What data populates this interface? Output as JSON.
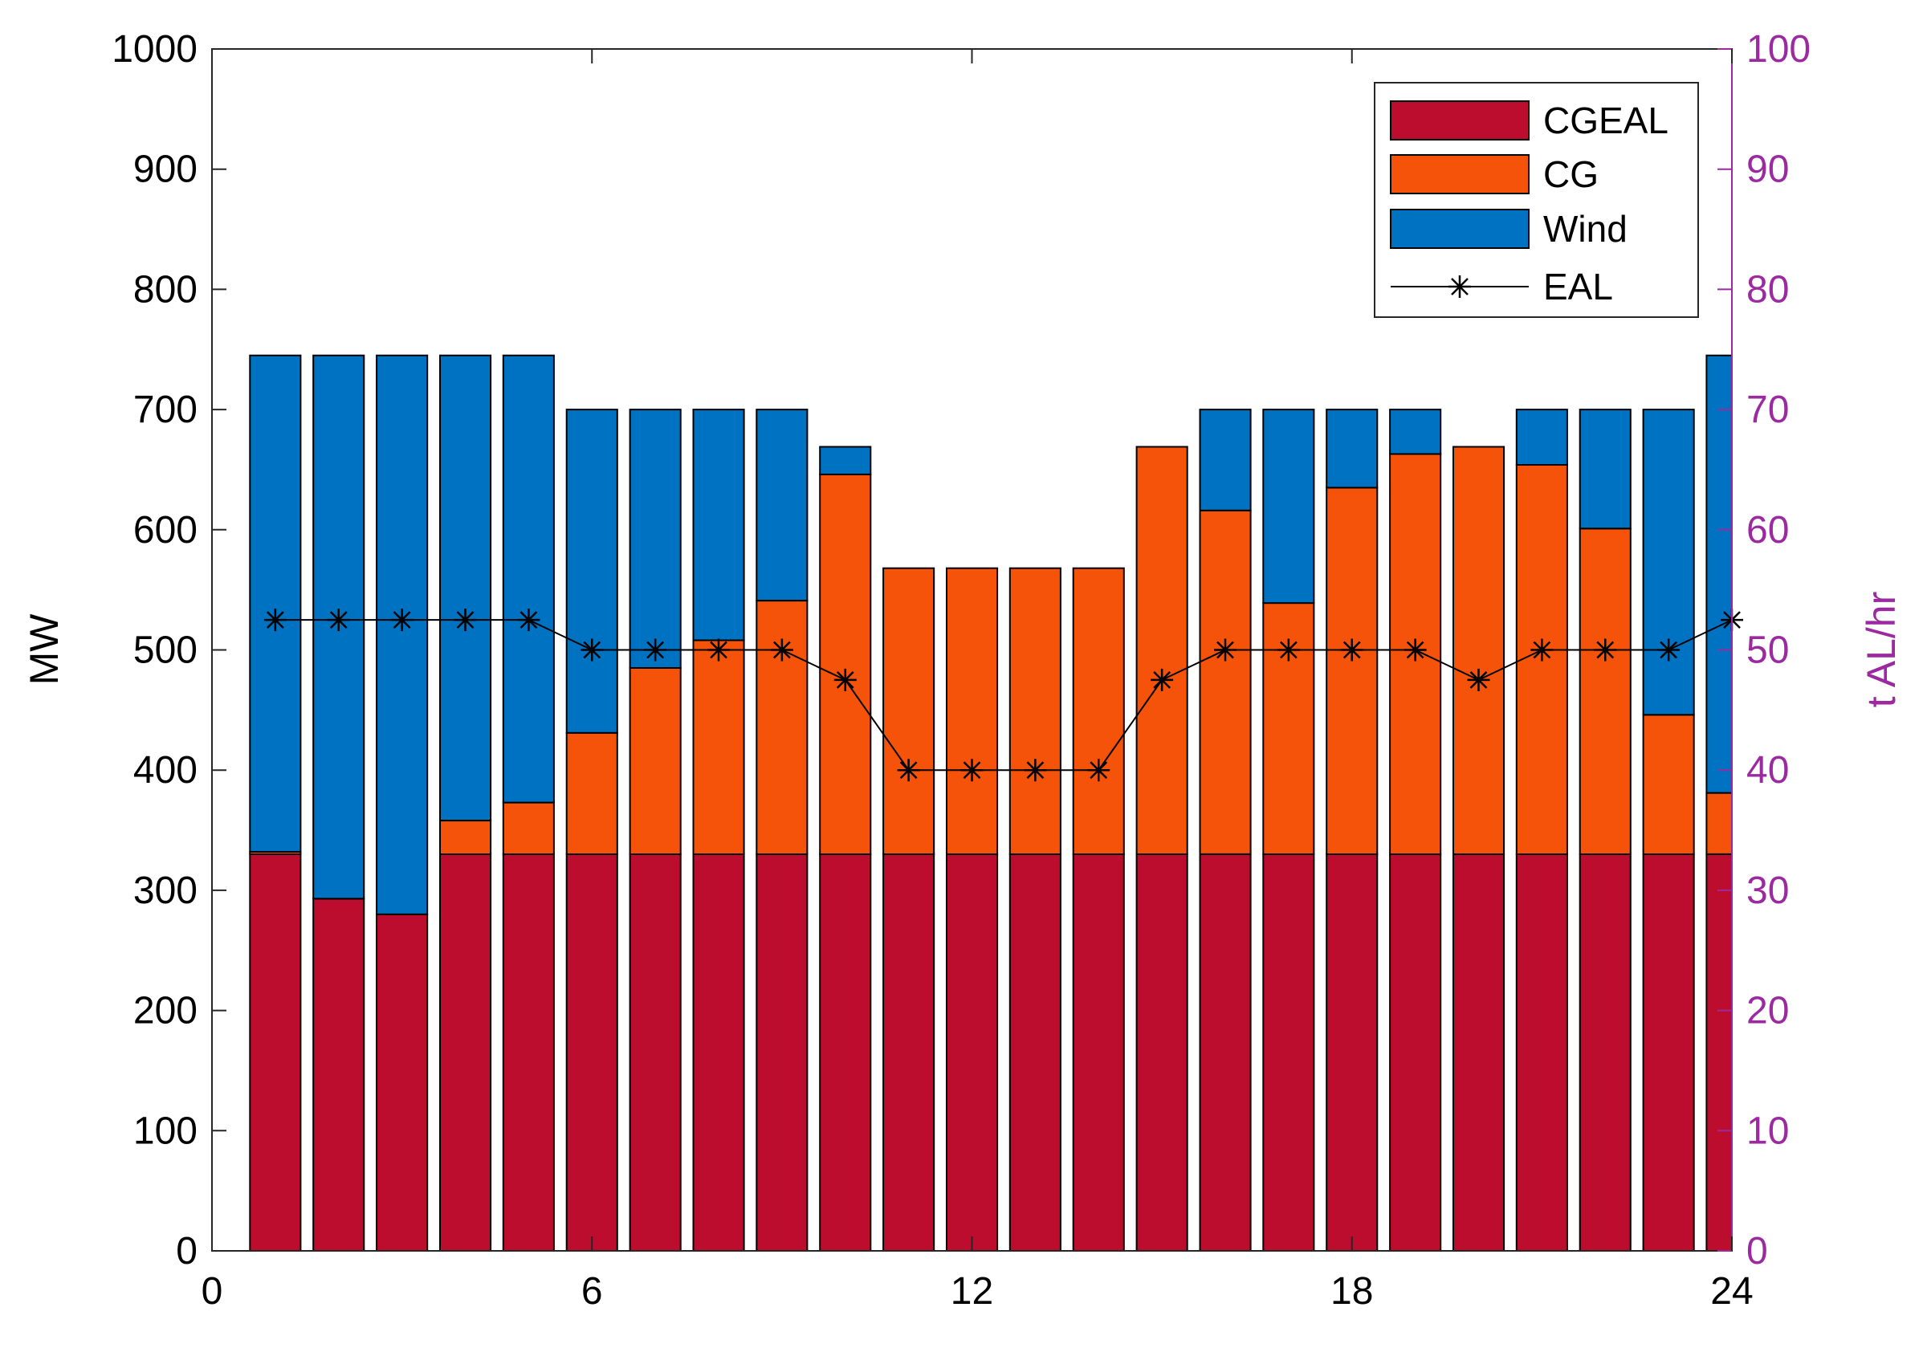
{
  "chart_data": {
    "type": "bar",
    "stacked": true,
    "title": "",
    "xlabel": "",
    "ylabel": "MW",
    "y2label": "t AL/hr",
    "xlim": [
      0,
      24
    ],
    "ylim": [
      0,
      1000
    ],
    "y2lim": [
      0,
      100
    ],
    "x_ticks": [
      0,
      6,
      12,
      18,
      24
    ],
    "y_ticks": [
      0,
      100,
      200,
      300,
      400,
      500,
      600,
      700,
      800,
      900,
      1000
    ],
    "y2_ticks": [
      0,
      10,
      20,
      30,
      40,
      50,
      60,
      70,
      80,
      90,
      100
    ],
    "x": [
      1,
      2,
      3,
      4,
      5,
      6,
      7,
      8,
      9,
      10,
      11,
      12,
      13,
      14,
      15,
      16,
      17,
      18,
      19,
      20,
      21,
      22,
      23,
      24
    ],
    "legend_position": "top-right",
    "grid": false,
    "colors": {
      "CGEAL": "#bd0d2e",
      "CG": "#f55309",
      "Wind": "#0072c2",
      "EAL": "#000000",
      "right_axis": "#9b2aa0"
    },
    "series": [
      {
        "name": "CGEAL",
        "axis": "left",
        "kind": "bar",
        "values": [
          330,
          293,
          280,
          330,
          330,
          330,
          330,
          330,
          330,
          330,
          330,
          330,
          330,
          330,
          330,
          330,
          330,
          330,
          330,
          330,
          330,
          330,
          330,
          330
        ]
      },
      {
        "name": "CG",
        "axis": "left",
        "kind": "bar",
        "values": [
          2,
          0,
          0,
          28,
          43,
          101,
          155,
          178,
          211,
          316,
          238,
          238,
          238,
          238,
          339,
          286,
          209,
          305,
          333,
          339,
          324,
          271,
          116,
          51
        ]
      },
      {
        "name": "Wind",
        "axis": "left",
        "kind": "bar",
        "values": [
          413,
          452,
          465,
          387,
          372,
          269,
          215,
          192,
          159,
          23,
          0,
          0,
          0,
          0,
          0,
          84,
          161,
          65,
          37,
          0,
          46,
          99,
          254,
          364
        ]
      },
      {
        "name": "EAL",
        "axis": "right",
        "kind": "line",
        "marker": "*",
        "values": [
          52.5,
          52.5,
          52.5,
          52.5,
          52.5,
          50,
          50,
          50,
          50,
          47.5,
          40,
          40,
          40,
          40,
          47.5,
          50,
          50,
          50,
          50,
          47.5,
          50,
          50,
          50,
          52.5
        ]
      }
    ]
  }
}
